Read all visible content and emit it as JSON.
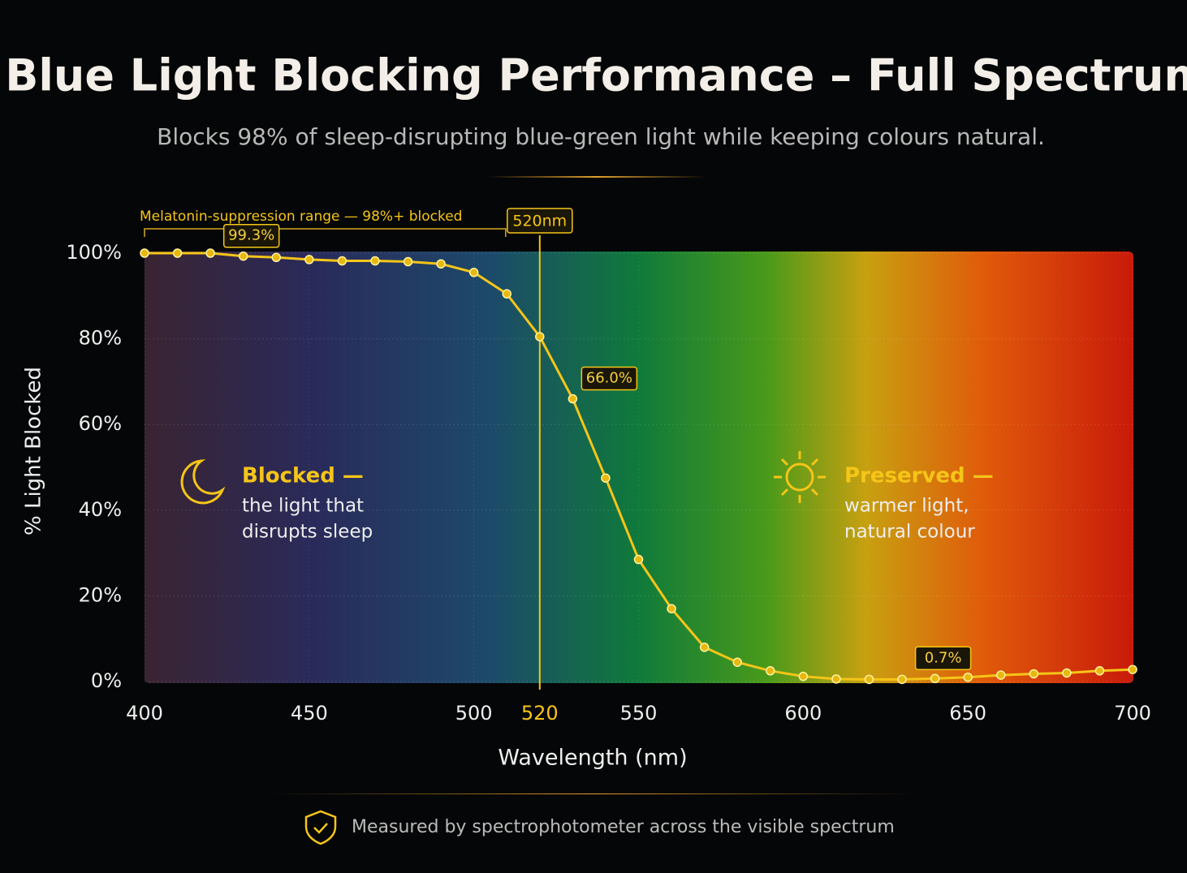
{
  "chart_data": {
    "type": "line",
    "title": "Blue Light Blocking Performance – Full Spectrum",
    "subtitle": "Blocks 98% of sleep-disrupting blue-green light while keeping colours natural.",
    "x_label": "Wavelength (nm)",
    "y_label": "% Light Blocked",
    "x": [
      400,
      410,
      420,
      430,
      440,
      450,
      460,
      470,
      480,
      490,
      500,
      510,
      520,
      530,
      540,
      550,
      560,
      570,
      580,
      590,
      600,
      610,
      620,
      630,
      640,
      650,
      660,
      670,
      680,
      690,
      700
    ],
    "series": [
      {
        "name": "Light blocked",
        "color": "#f5c518",
        "values": [
          100,
          100,
          100,
          99.3,
          99,
          98.5,
          98.2,
          98.2,
          98,
          97.5,
          95.5,
          90.5,
          80.5,
          66.0,
          47.5,
          28.5,
          17,
          8,
          4.5,
          2.5,
          1.2,
          0.6,
          0.5,
          0.5,
          0.7,
          1,
          1.5,
          1.8,
          2,
          2.5,
          2.8
        ],
        "value_labels": [
          null,
          null,
          null,
          "99.3%",
          null,
          null,
          null,
          null,
          null,
          null,
          null,
          null,
          null,
          "66.0%",
          null,
          null,
          null,
          null,
          null,
          null,
          null,
          null,
          null,
          null,
          "0.7%",
          null,
          null,
          null,
          null,
          null,
          null
        ]
      }
    ],
    "xlim": [
      400,
      700
    ],
    "xticks": [
      400,
      450,
      500,
      520,
      550,
      600,
      650,
      700
    ],
    "ylim": [
      0,
      100
    ],
    "yticks": [
      {
        "value": 0,
        "label": "0%"
      },
      {
        "value": 20,
        "label": "20%"
      },
      {
        "value": 40,
        "label": "40%"
      },
      {
        "value": 60,
        "label": "60%"
      },
      {
        "value": 80,
        "label": "80%"
      },
      {
        "value": 100,
        "label": "100%"
      }
    ],
    "grid": true,
    "marker": {
      "value": 520,
      "label": "520nm"
    },
    "range_annotation": "Melatonin-suppression range — 98%+ blocked",
    "blocked_title": "Blocked —",
    "blocked_text": [
      "the light that",
      "disrupts sleep"
    ],
    "preserved_title": "Preserved —",
    "preserved_text": [
      "warmer light,",
      "natural colour"
    ],
    "footer": "Measured by spectrophotometer across the visible spectrum"
  }
}
